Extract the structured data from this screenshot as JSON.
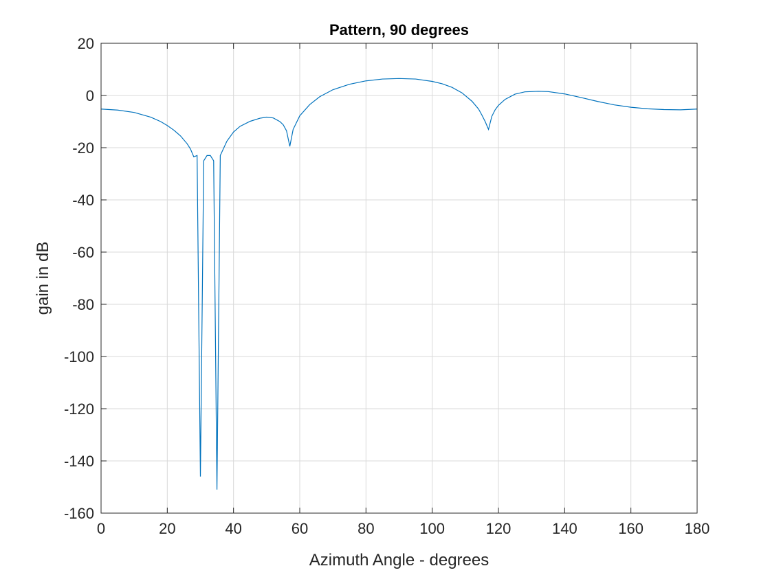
{
  "chart_data": {
    "type": "line",
    "title": "Pattern, 90 degrees",
    "xlabel": "Azimuth Angle - degrees",
    "ylabel": "gain in dB",
    "xlim": [
      0,
      180
    ],
    "ylim": [
      -160,
      20
    ],
    "xticks": [
      0,
      20,
      40,
      60,
      80,
      100,
      120,
      140,
      160,
      180
    ],
    "yticks": [
      -160,
      -140,
      -120,
      -100,
      -80,
      -60,
      -40,
      -20,
      0,
      20
    ],
    "grid": true,
    "line_color": "#0072bd",
    "series": [
      {
        "x": [
          0,
          5,
          10,
          15,
          18,
          20,
          22,
          24,
          26,
          27,
          28,
          29,
          30,
          31,
          32,
          33,
          34,
          35,
          36,
          38,
          40,
          42,
          45,
          48,
          50,
          52,
          54,
          55,
          56,
          57,
          58,
          60,
          63,
          66,
          70,
          75,
          80,
          85,
          90,
          95,
          100,
          103,
          106,
          109,
          112,
          114,
          115,
          116,
          117,
          118,
          119,
          120,
          122,
          125,
          128,
          132,
          135,
          140,
          145,
          150,
          155,
          160,
          165,
          170,
          175,
          180
        ],
        "y": [
          -5.2,
          -5.6,
          -6.5,
          -8.3,
          -10.0,
          -11.5,
          -13.3,
          -15.5,
          -18.5,
          -20.5,
          -23.5,
          -23.0,
          -146.0,
          -25.0,
          -23.0,
          -23.0,
          -25.0,
          -151.0,
          -23.0,
          -17.5,
          -14.0,
          -11.8,
          -9.9,
          -8.7,
          -8.3,
          -8.6,
          -10.0,
          -11.2,
          -13.5,
          -19.5,
          -13.0,
          -7.8,
          -3.5,
          -0.5,
          2.2,
          4.3,
          5.6,
          6.3,
          6.5,
          6.3,
          5.4,
          4.5,
          3.1,
          1.0,
          -2.2,
          -5.2,
          -7.5,
          -10.0,
          -13.0,
          -8.0,
          -5.5,
          -3.8,
          -1.5,
          0.5,
          1.4,
          1.6,
          1.5,
          0.6,
          -0.8,
          -2.3,
          -3.6,
          -4.5,
          -5.1,
          -5.4,
          -5.5,
          -5.2
        ]
      }
    ]
  }
}
